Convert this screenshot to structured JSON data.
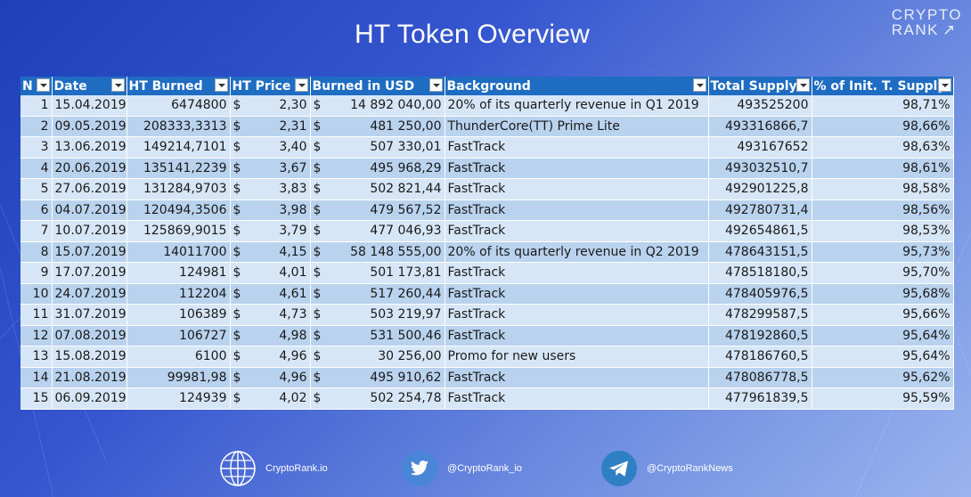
{
  "title": "HT Token Overview",
  "brand": {
    "line1": "CRYPTO",
    "line2": "RANK",
    "arrow": "↗"
  },
  "columns": [
    "N",
    "Date",
    "HT Burned",
    "HT Price",
    "Burned in USD",
    "Background",
    "Total Supply",
    "% of Init. T. Supply"
  ],
  "currency_symbol": "$",
  "rows": [
    {
      "n": "1",
      "date": "15.04.2019",
      "burned": "6474800",
      "price": "2,30",
      "usd": "14 892 040,00",
      "bg": "20% of its quarterly revenue in Q1 2019",
      "supply": "493525200",
      "pct": "98,71%"
    },
    {
      "n": "2",
      "date": "09.05.2019",
      "burned": "208333,3313",
      "price": "2,31",
      "usd": "481 250,00",
      "bg": "ThunderCore(TT) Prime Lite",
      "supply": "493316866,7",
      "pct": "98,66%"
    },
    {
      "n": "3",
      "date": "13.06.2019",
      "burned": "149214,7101",
      "price": "3,40",
      "usd": "507 330,01",
      "bg": "FastTrack",
      "supply": "493167652",
      "pct": "98,63%"
    },
    {
      "n": "4",
      "date": "20.06.2019",
      "burned": "135141,2239",
      "price": "3,67",
      "usd": "495 968,29",
      "bg": "FastTrack",
      "supply": "493032510,7",
      "pct": "98,61%"
    },
    {
      "n": "5",
      "date": "27.06.2019",
      "burned": "131284,9703",
      "price": "3,83",
      "usd": "502 821,44",
      "bg": "FastTrack",
      "supply": "492901225,8",
      "pct": "98,58%"
    },
    {
      "n": "6",
      "date": "04.07.2019",
      "burned": "120494,3506",
      "price": "3,98",
      "usd": "479 567,52",
      "bg": "FastTrack",
      "supply": "492780731,4",
      "pct": "98,56%"
    },
    {
      "n": "7",
      "date": "10.07.2019",
      "burned": "125869,9015",
      "price": "3,79",
      "usd": "477 046,93",
      "bg": "FastTrack",
      "supply": "492654861,5",
      "pct": "98,53%"
    },
    {
      "n": "8",
      "date": "15.07.2019",
      "burned": "14011700",
      "price": "4,15",
      "usd": "58 148 555,00",
      "bg": "20% of its quarterly revenue in Q2 2019",
      "supply": "478643151,5",
      "pct": "95,73%"
    },
    {
      "n": "9",
      "date": "17.07.2019",
      "burned": "124981",
      "price": "4,01",
      "usd": "501 173,81",
      "bg": "FastTrack",
      "supply": "478518180,5",
      "pct": "95,70%"
    },
    {
      "n": "10",
      "date": "24.07.2019",
      "burned": "112204",
      "price": "4,61",
      "usd": "517 260,44",
      "bg": "FastTrack",
      "supply": "478405976,5",
      "pct": "95,68%"
    },
    {
      "n": "11",
      "date": "31.07.2019",
      "burned": "106389",
      "price": "4,73",
      "usd": "503 219,97",
      "bg": "FastTrack",
      "supply": "478299587,5",
      "pct": "95,66%"
    },
    {
      "n": "12",
      "date": "07.08.2019",
      "burned": "106727",
      "price": "4,98",
      "usd": "531 500,46",
      "bg": "FastTrack",
      "supply": "478192860,5",
      "pct": "95,64%"
    },
    {
      "n": "13",
      "date": "15.08.2019",
      "burned": "6100",
      "price": "4,96",
      "usd": "30 256,00",
      "bg": "Promo for new users",
      "supply": "478186760,5",
      "pct": "95,64%"
    },
    {
      "n": "14",
      "date": "21.08.2019",
      "burned": "99981,98",
      "price": "4,96",
      "usd": "495 910,62",
      "bg": "FastTrack",
      "supply": "478086778,5",
      "pct": "95,62%"
    },
    {
      "n": "15",
      "date": "06.09.2019",
      "burned": "124939",
      "price": "4,02",
      "usd": "502 254,78",
      "bg": "FastTrack",
      "supply": "477961839,5",
      "pct": "95,59%"
    }
  ],
  "footer": {
    "website": "CryptoRank.io",
    "twitter": "@CryptoRank_io",
    "telegram": "@CryptoRankNews"
  },
  "icons": {
    "website": "globe-icon",
    "twitter": "twitter-bird-icon",
    "telegram": "telegram-plane-icon",
    "filter": "filter-dropdown-icon"
  }
}
